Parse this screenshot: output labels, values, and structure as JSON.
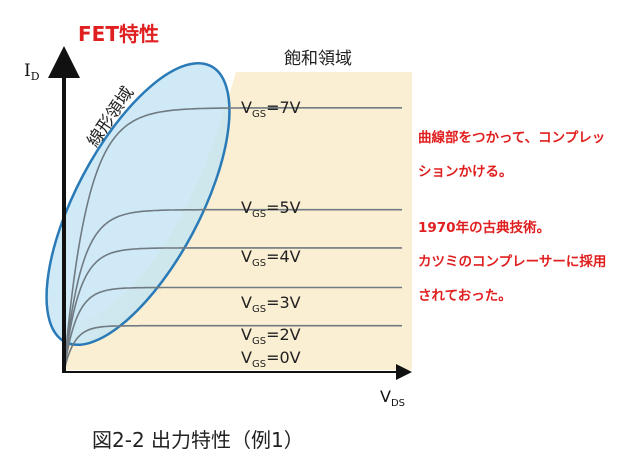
{
  "title": "FET特性",
  "caption": "図2-2 出力特性（例1）",
  "notes": [
    "曲線部をつかって、コンプレッ",
    "ションかける。",
    "1970年の古典技術。",
    "カツミのコンプレーサーに採用",
    "されておった。"
  ],
  "chart_data": {
    "type": "line",
    "title": "",
    "x_axis": {
      "main": "V",
      "sub": "DS"
    },
    "y_axis": {
      "main": "I",
      "sub": "D"
    },
    "region_labels": {
      "saturation": "飽和領域",
      "linear": "線形領域"
    },
    "series": [
      {
        "main": "V",
        "sub": "GS",
        "value": "=7V",
        "level": 0.93
      },
      {
        "main": "V",
        "sub": "GS",
        "value": "=5V",
        "level": 0.57
      },
      {
        "main": "V",
        "sub": "GS",
        "value": "=4V",
        "level": 0.435
      },
      {
        "main": "V",
        "sub": "GS",
        "value": "=3V",
        "level": 0.295
      },
      {
        "main": "V",
        "sub": "GS",
        "value": "=2V",
        "level": 0.16
      },
      {
        "main": "V",
        "sub": "GS",
        "value": "=0V",
        "level": null
      }
    ],
    "colors": {
      "saturation_fill": "#faefd2",
      "linear_fill": "#c2e4f4",
      "ellipse_stroke": "#2a7ab8",
      "curve": "#707a82",
      "axis": "#111111"
    },
    "grid": false
  }
}
